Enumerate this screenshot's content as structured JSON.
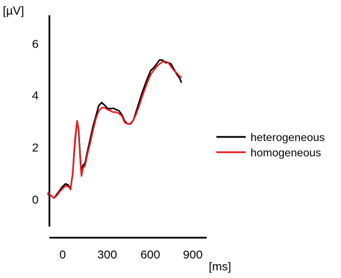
{
  "chart_data": {
    "type": "line",
    "title": "",
    "xlabel": "[ms]",
    "ylabel": "[µV]",
    "xlim": [
      -100,
      1000
    ],
    "ylim": [
      -1,
      7
    ],
    "x_ticks": [
      0,
      300,
      600,
      900
    ],
    "x_tick_labels": [
      "0",
      "300",
      "600",
      "900"
    ],
    "y_ticks": [
      0,
      2,
      4,
      6
    ],
    "y_tick_labels": [
      "0",
      "2",
      "4",
      "6"
    ],
    "grid": false,
    "legend_position": "right",
    "series": [
      {
        "name": "heterogeneous",
        "color": "#000000",
        "points": [
          [
            -100,
            0.2
          ],
          [
            -80,
            0.15
          ],
          [
            -60,
            0.05
          ],
          [
            -40,
            0.2
          ],
          [
            -20,
            0.35
          ],
          [
            0,
            0.5
          ],
          [
            20,
            0.6
          ],
          [
            40,
            0.55
          ],
          [
            55,
            0.4
          ],
          [
            70,
            1.0
          ],
          [
            85,
            2.2
          ],
          [
            100,
            3.0
          ],
          [
            110,
            2.7
          ],
          [
            120,
            1.8
          ],
          [
            130,
            1.0
          ],
          [
            140,
            1.3
          ],
          [
            155,
            1.4
          ],
          [
            170,
            1.8
          ],
          [
            190,
            2.3
          ],
          [
            210,
            2.8
          ],
          [
            230,
            3.2
          ],
          [
            250,
            3.6
          ],
          [
            270,
            3.72
          ],
          [
            290,
            3.62
          ],
          [
            310,
            3.5
          ],
          [
            330,
            3.48
          ],
          [
            350,
            3.5
          ],
          [
            370,
            3.45
          ],
          [
            390,
            3.4
          ],
          [
            410,
            3.25
          ],
          [
            430,
            3.0
          ],
          [
            450,
            2.9
          ],
          [
            470,
            2.9
          ],
          [
            490,
            3.05
          ],
          [
            510,
            3.4
          ],
          [
            530,
            3.75
          ],
          [
            550,
            4.1
          ],
          [
            570,
            4.4
          ],
          [
            590,
            4.7
          ],
          [
            610,
            4.95
          ],
          [
            630,
            5.05
          ],
          [
            650,
            5.2
          ],
          [
            670,
            5.35
          ],
          [
            690,
            5.35
          ],
          [
            710,
            5.25
          ],
          [
            730,
            5.25
          ],
          [
            750,
            5.2
          ],
          [
            770,
            5.0
          ],
          [
            790,
            4.8
          ],
          [
            810,
            4.65
          ],
          [
            820,
            4.5
          ]
        ]
      },
      {
        "name": "homogeneous",
        "color": "#e8191f",
        "points": [
          [
            -100,
            0.25
          ],
          [
            -80,
            0.15
          ],
          [
            -60,
            0.05
          ],
          [
            -40,
            0.15
          ],
          [
            -20,
            0.3
          ],
          [
            0,
            0.42
          ],
          [
            20,
            0.52
          ],
          [
            40,
            0.5
          ],
          [
            55,
            0.38
          ],
          [
            70,
            1.0
          ],
          [
            85,
            2.3
          ],
          [
            100,
            3.02
          ],
          [
            110,
            2.7
          ],
          [
            120,
            1.7
          ],
          [
            130,
            0.9
          ],
          [
            140,
            1.2
          ],
          [
            155,
            1.3
          ],
          [
            170,
            1.7
          ],
          [
            190,
            2.15
          ],
          [
            210,
            2.65
          ],
          [
            230,
            3.1
          ],
          [
            250,
            3.4
          ],
          [
            270,
            3.52
          ],
          [
            290,
            3.52
          ],
          [
            310,
            3.45
          ],
          [
            330,
            3.4
          ],
          [
            350,
            3.35
          ],
          [
            370,
            3.35
          ],
          [
            390,
            3.3
          ],
          [
            410,
            3.2
          ],
          [
            430,
            2.95
          ],
          [
            450,
            2.9
          ],
          [
            470,
            2.92
          ],
          [
            490,
            3.05
          ],
          [
            510,
            3.3
          ],
          [
            530,
            3.6
          ],
          [
            550,
            3.95
          ],
          [
            570,
            4.25
          ],
          [
            590,
            4.55
          ],
          [
            610,
            4.8
          ],
          [
            630,
            4.95
          ],
          [
            650,
            5.1
          ],
          [
            670,
            5.2
          ],
          [
            690,
            5.28
          ],
          [
            710,
            5.3
          ],
          [
            730,
            5.25
          ],
          [
            750,
            5.1
          ],
          [
            770,
            4.95
          ],
          [
            790,
            4.85
          ],
          [
            810,
            4.72
          ],
          [
            820,
            4.7
          ]
        ]
      }
    ]
  }
}
